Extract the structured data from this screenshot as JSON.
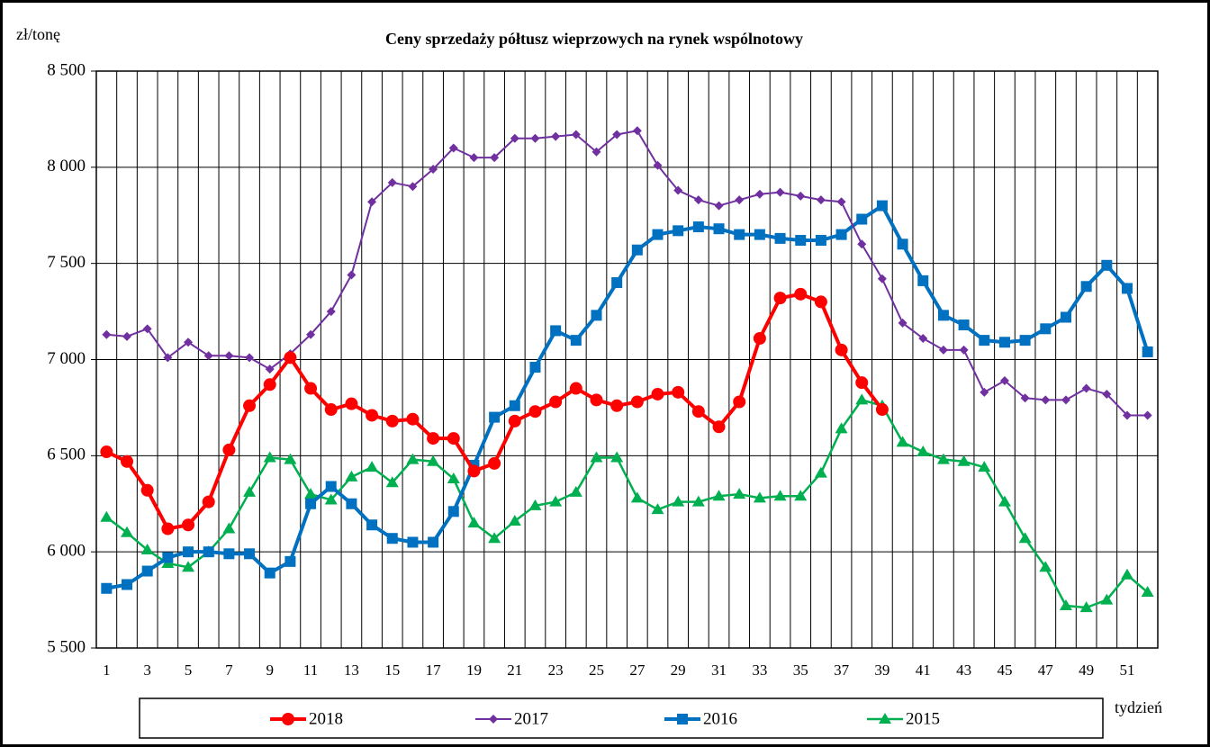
{
  "chart_data": {
    "type": "line",
    "title": "Ceny sprzedaży półtusz wieprzowych  na rynek wspólnotowy",
    "y_label": "zł/tonę",
    "x_label": "tydzień",
    "categories": [
      1,
      null,
      3,
      null,
      5,
      null,
      7,
      null,
      9,
      null,
      11,
      null,
      13,
      null,
      15,
      null,
      17,
      null,
      19,
      null,
      21,
      null,
      23,
      null,
      25,
      null,
      27,
      null,
      29,
      null,
      31,
      null,
      33,
      null,
      35,
      null,
      37,
      null,
      39,
      null,
      41,
      null,
      43,
      null,
      45,
      null,
      47,
      null,
      49,
      null,
      51,
      null
    ],
    "ylim": [
      5500,
      8500
    ],
    "yticks": [
      {
        "value": 5500,
        "label": "5 500"
      },
      {
        "value": 6000,
        "label": "6 000"
      },
      {
        "value": 6500,
        "label": "6 500"
      },
      {
        "value": 7000,
        "label": "7 000"
      },
      {
        "value": 7500,
        "label": "7 500"
      },
      {
        "value": 8000,
        "label": "8 000"
      },
      {
        "value": 8500,
        "label": "8 500"
      }
    ],
    "grid": true,
    "legend": "bottom",
    "series": [
      {
        "name": "2018",
        "color": "#ff0000",
        "marker": "circle",
        "values": [
          6520,
          6470,
          6320,
          6120,
          6140,
          6260,
          6530,
          6760,
          6870,
          7010,
          6850,
          6740,
          6770,
          6710,
          6680,
          6690,
          6590,
          6590,
          6420,
          6460,
          6680,
          6730,
          6780,
          6850,
          6790,
          6760,
          6780,
          6820,
          6830,
          6730,
          6650,
          6780,
          7110,
          7320,
          7340,
          7300,
          7050,
          6880,
          6740,
          null,
          null,
          null,
          null,
          null,
          null,
          null,
          null,
          null,
          null,
          null,
          null,
          null
        ]
      },
      {
        "name": "2017",
        "color": "#7030a0",
        "marker": "diamond",
        "values": [
          7130,
          7120,
          7160,
          7010,
          7090,
          7020,
          7020,
          7010,
          6950,
          7030,
          7130,
          7250,
          7440,
          7820,
          7920,
          7900,
          7990,
          8100,
          8050,
          8050,
          8150,
          8150,
          8160,
          8170,
          8080,
          8170,
          8190,
          8010,
          7880,
          7830,
          7800,
          7830,
          7860,
          7870,
          7850,
          7830,
          7820,
          7600,
          7420,
          7190,
          7110,
          7050,
          7050,
          6830,
          6890,
          6800,
          6790,
          6790,
          6850,
          6820,
          6710,
          6710
        ]
      },
      {
        "name": "2016",
        "color": "#0070c0",
        "marker": "square",
        "values": [
          5810,
          5830,
          5900,
          5970,
          6000,
          6000,
          5990,
          5990,
          5890,
          5950,
          6250,
          6340,
          6250,
          6140,
          6070,
          6050,
          6050,
          6210,
          6450,
          6700,
          6760,
          6960,
          7150,
          7100,
          7230,
          7400,
          7570,
          7650,
          7670,
          7690,
          7680,
          7650,
          7650,
          7630,
          7620,
          7620,
          7650,
          7730,
          7800,
          7600,
          7410,
          7230,
          7180,
          7100,
          7090,
          7100,
          7160,
          7220,
          7380,
          7490,
          7370,
          7040
        ]
      },
      {
        "name": "2015",
        "color": "#00b050",
        "marker": "triangle",
        "values": [
          6180,
          6100,
          6010,
          5940,
          5920,
          6000,
          6120,
          6310,
          6490,
          6480,
          6300,
          6270,
          6390,
          6440,
          6360,
          6480,
          6470,
          6380,
          6150,
          6070,
          6160,
          6240,
          6260,
          6310,
          6490,
          6490,
          6280,
          6220,
          6260,
          6260,
          6290,
          6300,
          6280,
          6290,
          6290,
          6410,
          6640,
          6790,
          6760,
          6570,
          6520,
          6480,
          6470,
          6440,
          6260,
          6070,
          5920,
          5720,
          5710,
          5750,
          5880,
          5790
        ]
      }
    ]
  }
}
